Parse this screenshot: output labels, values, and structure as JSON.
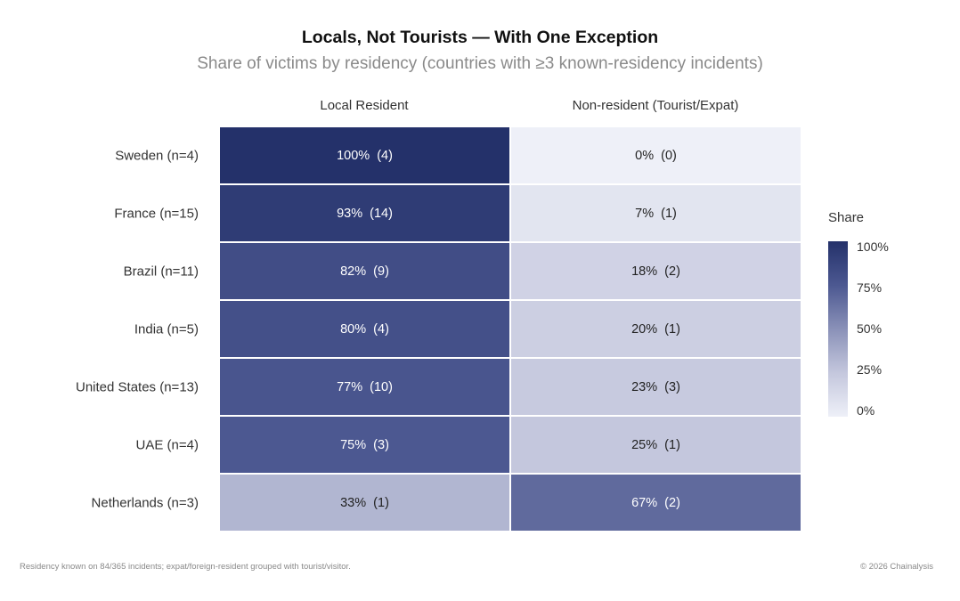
{
  "title": "Locals, Not Tourists — With One Exception",
  "subtitle": "Share of victims by residency (countries with ≥3 known-residency incidents)",
  "footnote": "Residency known on 84/365 incidents; expat/foreign-resident grouped with tourist/visitor.",
  "copyright": "© 2026 Chainalysis",
  "chart_data": {
    "type": "heatmap",
    "columns": [
      "Local Resident",
      "Non-resident (Tourist/Expat)"
    ],
    "rows": [
      {
        "label": "Sweden (n=4)",
        "cells": [
          {
            "share": 100,
            "text": "100%  (4)"
          },
          {
            "share": 0,
            "text": "0%  (0)"
          }
        ]
      },
      {
        "label": "France (n=15)",
        "cells": [
          {
            "share": 93,
            "text": "93%  (14)"
          },
          {
            "share": 7,
            "text": "7%  (1)"
          }
        ]
      },
      {
        "label": "Brazil (n=11)",
        "cells": [
          {
            "share": 82,
            "text": "82%  (9)"
          },
          {
            "share": 18,
            "text": "18%  (2)"
          }
        ]
      },
      {
        "label": "India (n=5)",
        "cells": [
          {
            "share": 80,
            "text": "80%  (4)"
          },
          {
            "share": 20,
            "text": "20%  (1)"
          }
        ]
      },
      {
        "label": "United States (n=13)",
        "cells": [
          {
            "share": 77,
            "text": "77%  (10)"
          },
          {
            "share": 23,
            "text": "23%  (3)"
          }
        ]
      },
      {
        "label": "UAE (n=4)",
        "cells": [
          {
            "share": 75,
            "text": "75%  (3)"
          },
          {
            "share": 25,
            "text": "25%  (1)"
          }
        ]
      },
      {
        "label": "Netherlands (n=3)",
        "cells": [
          {
            "share": 33,
            "text": "33%  (1)"
          },
          {
            "share": 67,
            "text": "67%  (2)"
          }
        ]
      }
    ],
    "colorbar": {
      "title": "Share",
      "ticks": [
        "100%",
        "75%",
        "50%",
        "25%",
        "0%"
      ],
      "tick_values": [
        100,
        75,
        50,
        25,
        0
      ],
      "range": [
        0,
        100
      ],
      "colors": [
        "#eef0f8",
        "#c4c7dd",
        "#8a91b8",
        "#4c5891",
        "#24316a"
      ]
    }
  }
}
